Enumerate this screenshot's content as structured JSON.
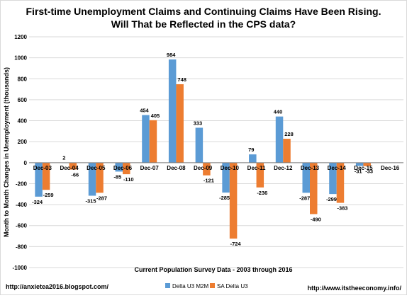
{
  "chart_data": {
    "type": "bar",
    "title": "First-time Unemployment Claims and Continuing Claims Have Been Rising.",
    "subtitle": "Will That be Reflected in the CPS data?",
    "xlabel": "Current Population Survey Data - 2003 through 2016",
    "ylabel": "Month to Month Changes in Unemployment (thousands)",
    "ylim": [
      -1000,
      1200
    ],
    "ytick_step": 200,
    "grid": true,
    "legend_position": "bottom",
    "categories": [
      "Dec-03",
      "Dec-04",
      "Dec-05",
      "Dec-06",
      "Dec-07",
      "Dec-08",
      "Dec-09",
      "Dec-10",
      "Dec-11",
      "Dec-12",
      "Dec-13",
      "Dec-14",
      "Dec-15",
      "Dec-16"
    ],
    "series": [
      {
        "name": "Delta U3 M2M",
        "color": "#5b9bd5",
        "values": [
          -324,
          2,
          -315,
          -85,
          454,
          984,
          333,
          -285,
          79,
          440,
          -287,
          -299,
          -31,
          null
        ],
        "labels": [
          "-324",
          "2",
          "-315",
          "-85",
          "454",
          "984",
          "333",
          "-285",
          "79",
          "440",
          "-287",
          "-299",
          "-31",
          ""
        ]
      },
      {
        "name": "SA Delta U3",
        "color": "#ed7d31",
        "values": [
          -259,
          -66,
          -287,
          -110,
          405,
          748,
          -121,
          -724,
          -236,
          228,
          -490,
          -383,
          -33,
          null
        ],
        "labels": [
          "-259",
          "-66",
          "-287",
          "-110",
          "405",
          "748",
          "-121",
          "-724",
          "-236",
          "228",
          "-490",
          "-383",
          "-33",
          ""
        ]
      }
    ],
    "footer_left": "http://anxietea2016.blogspot.com/",
    "footer_right": "http://www.itstheeconomy.info/"
  }
}
